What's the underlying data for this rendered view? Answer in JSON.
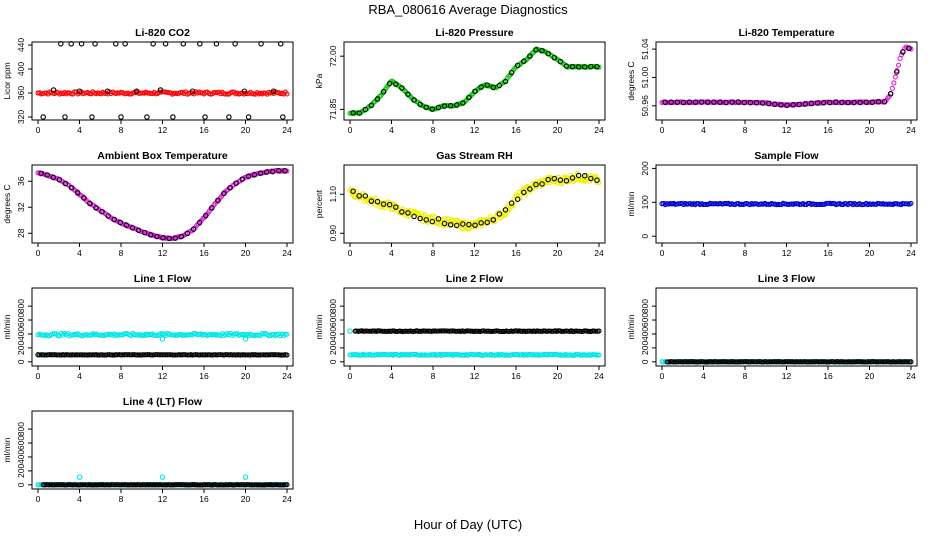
{
  "figure": {
    "title": "RBA_080616  Average Diagnostics",
    "xlabel": "Hour of Day (UTC)"
  },
  "chart_data": [
    {
      "type": "scatter",
      "title": "Li-820 CO2",
      "ylabel": "Licor ppm",
      "xlim": [
        0,
        24
      ],
      "ylim": [
        315,
        445
      ],
      "xticks": [
        0,
        4,
        8,
        12,
        16,
        20,
        24
      ],
      "yticks": [
        320,
        360,
        400,
        440
      ],
      "series": [
        {
          "color": "#ff0000",
          "kind": "band",
          "x": [
            0,
            24
          ],
          "y": [
            360,
            360
          ],
          "spread": 2
        },
        {
          "color": "#000000",
          "kind": "points",
          "x": [
            0.5,
            1.5,
            2.2,
            2.6,
            3.2,
            4.0,
            4.2,
            5.2,
            5.5,
            6.7,
            7.5,
            8.0,
            8.4,
            9.5,
            10.5,
            11.1,
            11.8,
            12.3,
            13.0,
            14.0,
            14.9,
            15.6,
            16.1,
            17.2,
            18.4,
            19.0,
            19.9,
            20.3,
            21.5,
            22.7,
            23.4,
            23.6
          ],
          "y": [
            320,
            365,
            442,
            320,
            442,
            363,
            442,
            320,
            442,
            363,
            442,
            320,
            442,
            363,
            320,
            442,
            365,
            442,
            320,
            442,
            363,
            442,
            320,
            442,
            320,
            442,
            363,
            320,
            442,
            363,
            442,
            320
          ]
        }
      ]
    },
    {
      "type": "scatter",
      "title": "Li-820 Pressure",
      "ylabel": "kPa",
      "xlim": [
        0,
        24
      ],
      "ylim": [
        71.82,
        72.04
      ],
      "xticks": [
        0,
        4,
        8,
        12,
        16,
        20,
        24
      ],
      "yticks": [
        71.85,
        72.0
      ],
      "series": [
        {
          "color": "#00cc00",
          "kind": "curve",
          "x": [
            0,
            1,
            2,
            3,
            4,
            5,
            6,
            7,
            8,
            9,
            10,
            11,
            12,
            13,
            14,
            15,
            16,
            17,
            18,
            19,
            20,
            21,
            22,
            23,
            24
          ],
          "y": [
            71.84,
            71.84,
            71.86,
            71.89,
            71.93,
            71.91,
            71.88,
            71.86,
            71.85,
            71.86,
            71.86,
            71.87,
            71.9,
            71.92,
            71.91,
            71.93,
            71.97,
            71.99,
            72.02,
            72.01,
            71.99,
            71.97,
            71.97,
            71.97,
            71.97
          ]
        },
        {
          "color": "#000000",
          "kind": "curve-sparse",
          "same_as_above": true
        }
      ]
    },
    {
      "type": "scatter",
      "title": "Li-820 Temperature",
      "ylabel": "degrees C",
      "xlim": [
        0,
        24
      ],
      "ylim": [
        50.94,
        51.05
      ],
      "xticks": [
        0,
        4,
        8,
        12,
        16,
        20,
        24
      ],
      "yticks": [
        50.96,
        51.0,
        51.04
      ],
      "series": [
        {
          "color": "#e020e0",
          "kind": "curve",
          "x": [
            0,
            2,
            4,
            6,
            8,
            10,
            11,
            12,
            13,
            14,
            16,
            18,
            20,
            21.5,
            22,
            22.5,
            23,
            23.5,
            24
          ],
          "y": [
            50.965,
            50.965,
            50.965,
            50.965,
            50.965,
            50.964,
            50.962,
            50.961,
            50.962,
            50.963,
            50.965,
            50.965,
            50.965,
            50.966,
            50.975,
            51.0,
            51.03,
            51.043,
            51.04
          ]
        }
      ]
    },
    {
      "type": "scatter",
      "title": "Ambient Box Temperature",
      "ylabel": "degrees C",
      "xlim": [
        0,
        24
      ],
      "ylim": [
        26.5,
        38.5
      ],
      "xticks": [
        0,
        4,
        8,
        12,
        16,
        20,
        24
      ],
      "yticks": [
        28,
        32,
        36
      ],
      "series": [
        {
          "color": "#e020e0",
          "kind": "curve",
          "x": [
            0,
            1,
            2,
            3,
            4,
            5,
            6,
            7,
            8,
            9,
            10,
            11,
            12,
            13,
            14,
            15,
            16,
            17,
            18,
            19,
            20,
            21,
            22,
            23,
            24
          ],
          "y": [
            37.3,
            36.9,
            36.3,
            35.3,
            34.0,
            32.6,
            31.5,
            30.4,
            29.6,
            28.9,
            28.3,
            27.7,
            27.3,
            27.2,
            27.6,
            28.6,
            30.4,
            32.4,
            34.3,
            35.6,
            36.6,
            37.1,
            37.4,
            37.6,
            37.6
          ]
        }
      ]
    },
    {
      "type": "scatter",
      "title": "Gas Stream RH",
      "ylabel": "percent",
      "xlim": [
        0,
        24
      ],
      "ylim": [
        0.85,
        1.25
      ],
      "xticks": [
        0,
        4,
        8,
        12,
        16,
        20,
        24
      ],
      "yticks": [
        0.9,
        1.1
      ],
      "series": [
        {
          "color": "#f0f000",
          "kind": "noisy-curve",
          "x": [
            0,
            1,
            2,
            3,
            4,
            5,
            6,
            7,
            8,
            9,
            10,
            11,
            12,
            13,
            14,
            15,
            16,
            17,
            18,
            19,
            20,
            21,
            22,
            23,
            24
          ],
          "y": [
            1.11,
            1.09,
            1.07,
            1.05,
            1.04,
            1.01,
            1.0,
            0.98,
            0.97,
            0.96,
            0.95,
            0.94,
            0.94,
            0.96,
            0.98,
            1.01,
            1.08,
            1.12,
            1.15,
            1.17,
            1.17,
            1.18,
            1.19,
            1.18,
            1.17
          ]
        }
      ]
    },
    {
      "type": "scatter",
      "title": "Sample Flow",
      "ylabel": "ml/min",
      "xlim": [
        0,
        24
      ],
      "ylim": [
        -20,
        210
      ],
      "xticks": [
        0,
        4,
        8,
        12,
        16,
        20,
        24
      ],
      "yticks": [
        0,
        100,
        200
      ],
      "series": [
        {
          "color": "#0000cc",
          "kind": "band",
          "x": [
            0,
            24
          ],
          "y": [
            95,
            95
          ],
          "spread": 2
        }
      ]
    },
    {
      "type": "scatter",
      "title": "Line 1 Flow",
      "ylabel": "ml/min",
      "xlim": [
        0,
        24
      ],
      "ylim": [
        -60,
        1060
      ],
      "xticks": [
        0,
        4,
        8,
        12,
        16,
        20,
        24
      ],
      "yticks": [
        0,
        200,
        400,
        600,
        800
      ],
      "series": [
        {
          "color": "#00e5e5",
          "kind": "band",
          "x": [
            0,
            24
          ],
          "y": [
            390,
            390
          ],
          "spread": 18
        },
        {
          "color": "#00e5e5",
          "kind": "points",
          "x": [
            0,
            12,
            20
          ],
          "y": [
            100,
            330,
            330
          ]
        },
        {
          "color": "#000000",
          "kind": "band",
          "x": [
            0,
            24
          ],
          "y": [
            100,
            100
          ],
          "spread": 3
        }
      ]
    },
    {
      "type": "scatter",
      "title": "Line 2 Flow",
      "ylabel": "ml/min",
      "xlim": [
        0,
        24
      ],
      "ylim": [
        -60,
        1060
      ],
      "xticks": [
        0,
        4,
        8,
        12,
        16,
        20,
        24
      ],
      "yticks": [
        0,
        200,
        400,
        600,
        800
      ],
      "series": [
        {
          "color": "#00e5e5",
          "kind": "band",
          "x": [
            0,
            24
          ],
          "y": [
            100,
            100
          ],
          "spread": 8
        },
        {
          "color": "#00e5e5",
          "kind": "points",
          "x": [
            0
          ],
          "y": [
            440
          ]
        },
        {
          "color": "#000000",
          "kind": "band",
          "x": [
            0.5,
            24
          ],
          "y": [
            440,
            440
          ],
          "spread": 5
        }
      ]
    },
    {
      "type": "scatter",
      "title": "Line 3 Flow",
      "ylabel": "ml/min",
      "xlim": [
        0,
        24
      ],
      "ylim": [
        -60,
        1060
      ],
      "xticks": [
        0,
        4,
        8,
        12,
        16,
        20,
        24
      ],
      "yticks": [
        0,
        200,
        400,
        600,
        800
      ],
      "series": [
        {
          "color": "#00e5e5",
          "kind": "band",
          "x": [
            0,
            24
          ],
          "y": [
            0,
            0
          ],
          "spread": 3
        },
        {
          "color": "#000000",
          "kind": "band",
          "x": [
            0.5,
            24
          ],
          "y": [
            0,
            0
          ],
          "spread": 3
        }
      ]
    },
    {
      "type": "scatter",
      "title": "Line 4 (LT) Flow",
      "ylabel": "ml/min",
      "xlim": [
        0,
        24
      ],
      "ylim": [
        -60,
        1060
      ],
      "xticks": [
        0,
        4,
        8,
        12,
        16,
        20,
        24
      ],
      "yticks": [
        0,
        200,
        400,
        600,
        800
      ],
      "series": [
        {
          "color": "#00e5e5",
          "kind": "band",
          "x": [
            0,
            24
          ],
          "y": [
            0,
            0
          ],
          "spread": 3
        },
        {
          "color": "#00e5e5",
          "kind": "points",
          "x": [
            4,
            12,
            20
          ],
          "y": [
            110,
            110,
            110
          ]
        },
        {
          "color": "#000000",
          "kind": "band",
          "x": [
            0.5,
            24
          ],
          "y": [
            0,
            0
          ],
          "spread": 3
        }
      ]
    }
  ]
}
